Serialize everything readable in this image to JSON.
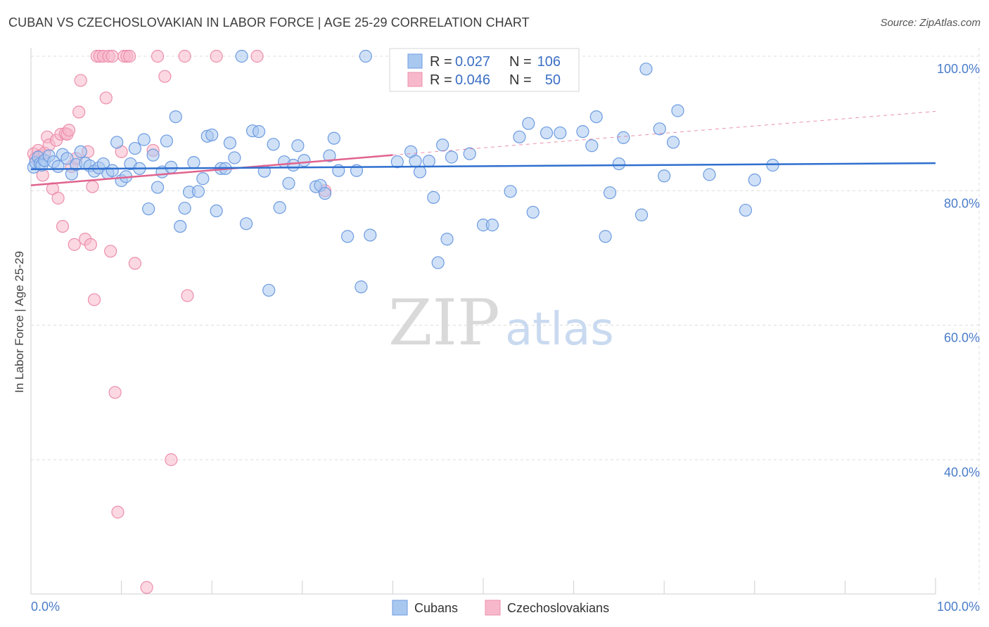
{
  "header": {
    "title": "CUBAN VS CZECHOSLOVAKIAN IN LABOR FORCE | AGE 25-29 CORRELATION CHART",
    "source": "Source: ZipAtlas.com"
  },
  "watermark": {
    "zip": "ZIP",
    "atlas": "atlas"
  },
  "legend": {
    "rows": [
      {
        "r_label": "R =",
        "r_value": "0.027",
        "n_label": "N =",
        "n_value": "106"
      },
      {
        "r_label": "R =",
        "r_value": "0.046",
        "n_label": "N =",
        "n_value": "50"
      }
    ]
  },
  "colors": {
    "cubans_fill": "#a9c8f0",
    "cubans_stroke": "#6d9be0",
    "cubans_line": "#2f6fcf",
    "czech_fill": "#f7b8cb",
    "czech_stroke": "#ec8fac",
    "czech_line": "#e0638f",
    "grid": "#dcdcdc",
    "axis_text": "#4a7cc9"
  },
  "chart_data": {
    "type": "scatter",
    "title": "CUBAN VS CZECHOSLOVAKIAN IN LABOR FORCE | AGE 25-29 CORRELATION CHART",
    "xlabel": "",
    "ylabel": "In Labor Force | Age 25-29",
    "xlim": [
      0,
      100
    ],
    "ylim": [
      20,
      102
    ],
    "x_tick_labels": [
      "0.0%",
      "100.0%"
    ],
    "y_ticks": [
      40,
      60,
      80,
      100
    ],
    "y_tick_labels": [
      "40.0%",
      "60.0%",
      "80.0%",
      "100.0%"
    ],
    "series": [
      {
        "name": "Cubans",
        "r": 0.027,
        "n": 106,
        "trend": {
          "x": [
            0,
            100
          ],
          "y": [
            83.2,
            84.1
          ]
        },
        "points": [
          [
            0.3,
            83.5
          ],
          [
            0.5,
            84.2
          ],
          [
            0.8,
            85.0
          ],
          [
            1.0,
            84.0
          ],
          [
            1.2,
            83.8
          ],
          [
            1.5,
            84.5
          ],
          [
            2.0,
            85.2
          ],
          [
            2.5,
            84.3
          ],
          [
            3.0,
            83.6
          ],
          [
            3.5,
            85.4
          ],
          [
            4.0,
            84.8
          ],
          [
            4.5,
            82.5
          ],
          [
            5.0,
            83.9
          ],
          [
            5.5,
            85.8
          ],
          [
            6.0,
            84.1
          ],
          [
            6.5,
            83.7
          ],
          [
            7.0,
            82.9
          ],
          [
            7.5,
            83.4
          ],
          [
            8.0,
            84.0
          ],
          [
            8.5,
            82.6
          ],
          [
            9.0,
            83.0
          ],
          [
            9.5,
            87.2
          ],
          [
            10.0,
            81.5
          ],
          [
            10.5,
            82.1
          ],
          [
            11.0,
            84.0
          ],
          [
            11.5,
            86.3
          ],
          [
            12.0,
            83.3
          ],
          [
            12.5,
            87.6
          ],
          [
            13.0,
            77.3
          ],
          [
            13.5,
            85.3
          ],
          [
            14.0,
            80.5
          ],
          [
            14.5,
            82.8
          ],
          [
            15.0,
            87.4
          ],
          [
            15.5,
            83.5
          ],
          [
            16.0,
            91.0
          ],
          [
            16.5,
            74.7
          ],
          [
            17.0,
            77.4
          ],
          [
            17.5,
            79.8
          ],
          [
            18.0,
            84.2
          ],
          [
            18.5,
            79.9
          ],
          [
            19.0,
            81.8
          ],
          [
            19.5,
            88.1
          ],
          [
            20.0,
            88.3
          ],
          [
            20.5,
            77.0
          ],
          [
            21.0,
            83.3
          ],
          [
            21.5,
            83.3
          ],
          [
            22.0,
            87.1
          ],
          [
            22.5,
            84.9
          ],
          [
            23.3,
            100.0
          ],
          [
            23.8,
            75.1
          ],
          [
            24.5,
            88.9
          ],
          [
            25.2,
            88.8
          ],
          [
            25.8,
            82.9
          ],
          [
            26.3,
            65.2
          ],
          [
            26.8,
            86.9
          ],
          [
            27.5,
            77.5
          ],
          [
            28.0,
            84.3
          ],
          [
            28.5,
            81.1
          ],
          [
            29.0,
            83.8
          ],
          [
            29.5,
            86.7
          ],
          [
            30.2,
            84.5
          ],
          [
            31.5,
            80.6
          ],
          [
            32.0,
            80.8
          ],
          [
            32.5,
            79.6
          ],
          [
            33.0,
            85.2
          ],
          [
            33.5,
            87.8
          ],
          [
            34.0,
            83.0
          ],
          [
            35.0,
            73.2
          ],
          [
            36.0,
            83.0
          ],
          [
            36.5,
            65.7
          ],
          [
            37.0,
            100.0
          ],
          [
            37.5,
            73.4
          ],
          [
            40.5,
            84.3
          ],
          [
            42.0,
            85.8
          ],
          [
            42.5,
            84.4
          ],
          [
            43.0,
            82.8
          ],
          [
            44.0,
            84.4
          ],
          [
            44.5,
            79.0
          ],
          [
            45.0,
            69.3
          ],
          [
            45.5,
            86.8
          ],
          [
            46.0,
            72.8
          ],
          [
            46.5,
            85.0
          ],
          [
            48.5,
            85.5
          ],
          [
            50.0,
            74.9
          ],
          [
            51.0,
            74.9
          ],
          [
            53.0,
            79.9
          ],
          [
            54.0,
            88.0
          ],
          [
            55.0,
            90.0
          ],
          [
            55.5,
            76.8
          ],
          [
            57.0,
            88.6
          ],
          [
            58.5,
            88.6
          ],
          [
            61.0,
            88.8
          ],
          [
            62.0,
            86.7
          ],
          [
            62.5,
            91.0
          ],
          [
            63.5,
            73.2
          ],
          [
            64.0,
            79.7
          ],
          [
            65.0,
            84.0
          ],
          [
            65.5,
            87.9
          ],
          [
            67.5,
            76.4
          ],
          [
            68.0,
            98.1
          ],
          [
            69.5,
            89.2
          ],
          [
            70.0,
            82.2
          ],
          [
            71.0,
            87.2
          ],
          [
            71.5,
            91.9
          ],
          [
            75.0,
            82.4
          ],
          [
            79.0,
            77.1
          ],
          [
            80.0,
            81.6
          ],
          [
            82.0,
            83.8
          ]
        ]
      },
      {
        "name": "Czechoslovakians",
        "r": 0.046,
        "n": 50,
        "trend": {
          "x": [
            0,
            40
          ],
          "y": [
            80.8,
            85.3
          ]
        },
        "dashed_extension": {
          "x": [
            40,
            100
          ],
          "y": [
            85.3,
            91.8
          ]
        },
        "points": [
          [
            0.3,
            85.5
          ],
          [
            0.5,
            84.8
          ],
          [
            0.8,
            86.0
          ],
          [
            1.0,
            85.2
          ],
          [
            1.3,
            82.3
          ],
          [
            1.5,
            85.6
          ],
          [
            1.8,
            88.0
          ],
          [
            2.0,
            86.8
          ],
          [
            2.4,
            80.3
          ],
          [
            2.8,
            87.5
          ],
          [
            3.0,
            78.9
          ],
          [
            3.3,
            88.4
          ],
          [
            3.5,
            74.7
          ],
          [
            3.8,
            88.5
          ],
          [
            4.0,
            88.4
          ],
          [
            4.2,
            89.0
          ],
          [
            4.5,
            83.6
          ],
          [
            4.8,
            72.0
          ],
          [
            5.0,
            84.8
          ],
          [
            5.3,
            91.7
          ],
          [
            5.5,
            96.4
          ],
          [
            6.0,
            72.8
          ],
          [
            6.3,
            85.8
          ],
          [
            6.6,
            72.0
          ],
          [
            6.8,
            80.6
          ],
          [
            7.0,
            63.8
          ],
          [
            7.3,
            100.0
          ],
          [
            7.6,
            100.0
          ],
          [
            8.0,
            100.0
          ],
          [
            8.3,
            93.8
          ],
          [
            8.6,
            100.0
          ],
          [
            8.8,
            71.0
          ],
          [
            9.0,
            100.0
          ],
          [
            9.3,
            50.0
          ],
          [
            9.6,
            32.2
          ],
          [
            10.0,
            85.8
          ],
          [
            10.3,
            100.0
          ],
          [
            10.6,
            100.0
          ],
          [
            10.9,
            100.0
          ],
          [
            11.5,
            69.2
          ],
          [
            12.8,
            21.0
          ],
          [
            13.5,
            86.0
          ],
          [
            14.0,
            100.0
          ],
          [
            14.8,
            97.0
          ],
          [
            15.5,
            40.0
          ],
          [
            17.0,
            100.0
          ],
          [
            17.3,
            64.4
          ],
          [
            20.5,
            100.0
          ],
          [
            25.0,
            100.0
          ],
          [
            32.5,
            80.0
          ]
        ]
      }
    ]
  },
  "bottom_legend": [
    {
      "label": "Cubans"
    },
    {
      "label": "Czechoslovakians"
    }
  ]
}
